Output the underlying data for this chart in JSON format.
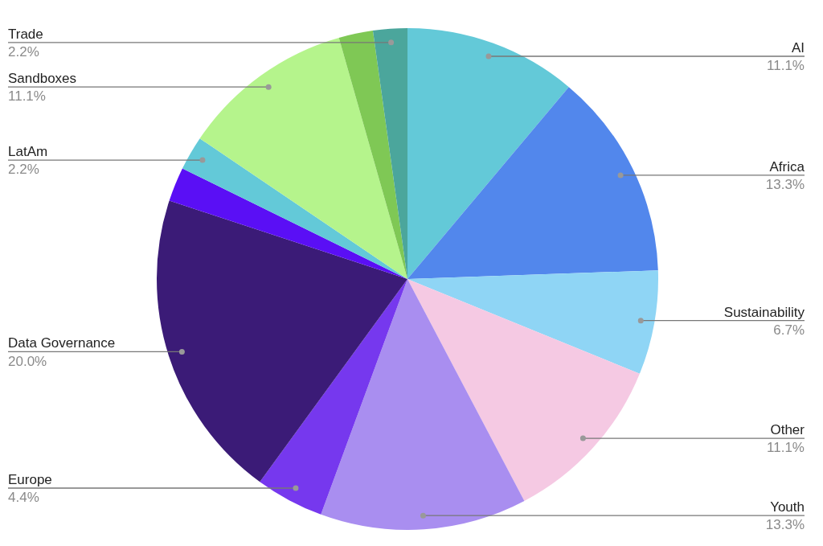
{
  "chart_data": {
    "type": "pie",
    "categories": [
      "AI",
      "Africa",
      "Sustainability",
      "Other",
      "Youth",
      "Europe",
      "Data Governance",
      null,
      "LatAm",
      "Sandboxes",
      null,
      "Trade"
    ],
    "values": [
      11.1,
      13.3,
      6.7,
      11.1,
      13.3,
      4.4,
      20.0,
      2.2,
      2.2,
      11.1,
      2.2,
      2.2
    ],
    "value_labels": [
      "11.1%",
      "13.3%",
      "6.7%",
      "11.1%",
      "13.3%",
      "4.4%",
      "20.0%",
      null,
      "2.2%",
      "11.1%",
      null,
      "2.2%"
    ],
    "colors": [
      "#63c9d8",
      "#5287ec",
      "#8fd5f5",
      "#f5c9e3",
      "#a98ef0",
      "#7638ee",
      "#3b1b77",
      "#5a0ff5",
      "#63c9d8",
      "#b5f48c",
      "#7fc855",
      "#4ba69c"
    ],
    "legend": false
  }
}
